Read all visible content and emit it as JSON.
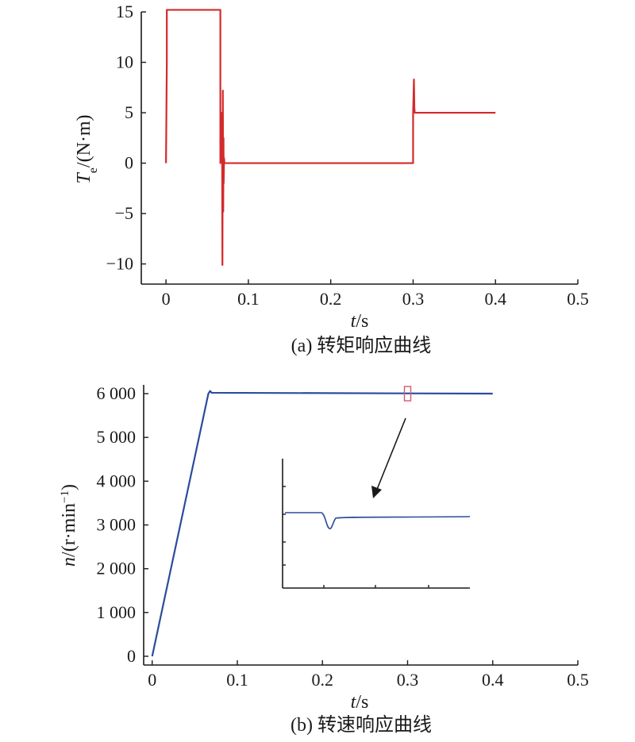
{
  "chart_data": [
    {
      "type": "line",
      "caption": "(a) 转矩响应曲线",
      "xlabel": {
        "italic": "t",
        "rest": "/s"
      },
      "ylabel": {
        "italic": "T",
        "sub": "e",
        "rest": "/(N·m)"
      },
      "xlim": [
        -0.03,
        0.5
      ],
      "ylim": [
        -12,
        15
      ],
      "xticks": [
        0,
        0.1,
        0.2,
        0.3,
        0.4,
        0.5
      ],
      "xtick_labels": [
        "0",
        "0.1",
        "0.2",
        "0.3",
        "0.4",
        "0.5"
      ],
      "yticks": [
        -10,
        -5,
        0,
        5,
        10,
        15
      ],
      "ytick_labels": [
        "−10",
        "−5",
        "0",
        "5",
        "10",
        "15"
      ],
      "color": "#d42a2a",
      "series": [
        {
          "x": [
            0,
            0.001,
            0.001,
            0.066,
            0.066,
            0.068,
            0.0685,
            0.069,
            0.0695,
            0.0698,
            0.07,
            0.0705,
            0.071,
            0.072,
            0.3,
            0.3,
            0.301,
            0.3015,
            0.302,
            0.304,
            0.4
          ],
          "y": [
            0,
            10,
            15.2,
            15.2,
            0,
            5,
            -10.1,
            7.2,
            -4.8,
            2.5,
            -2,
            0.5,
            0,
            0,
            0,
            5,
            8.3,
            5.5,
            5,
            5,
            5
          ]
        }
      ]
    },
    {
      "type": "line",
      "caption": "(b) 转速响应曲线",
      "xlabel": {
        "italic": "t",
        "rest": "/s"
      },
      "ylabel": {
        "italic": "n",
        "rest": "/(r·min",
        "sup": "−1",
        "close": ")"
      },
      "xlim": [
        -0.01,
        0.5
      ],
      "ylim": [
        -200,
        6200
      ],
      "xticks": [
        0,
        0.1,
        0.2,
        0.3,
        0.4,
        0.5
      ],
      "xtick_labels": [
        "0",
        "0.1",
        "0.2",
        "0.3",
        "0.4",
        "0.5"
      ],
      "yticks": [
        0,
        1000,
        2000,
        3000,
        4000,
        5000,
        6000
      ],
      "ytick_labels": [
        "0",
        "1 000",
        "2 000",
        "3 000",
        "4 000",
        "5 000",
        "6 000"
      ],
      "color": "#2b4c9c",
      "series": [
        {
          "x": [
            0,
            0.066,
            0.068,
            0.07,
            0.4
          ],
          "y": [
            0,
            6000,
            6060,
            6020,
            6000
          ]
        }
      ],
      "zoom_marker": {
        "x": 0.3,
        "y": 6000,
        "color": "#d9566b"
      }
    }
  ]
}
